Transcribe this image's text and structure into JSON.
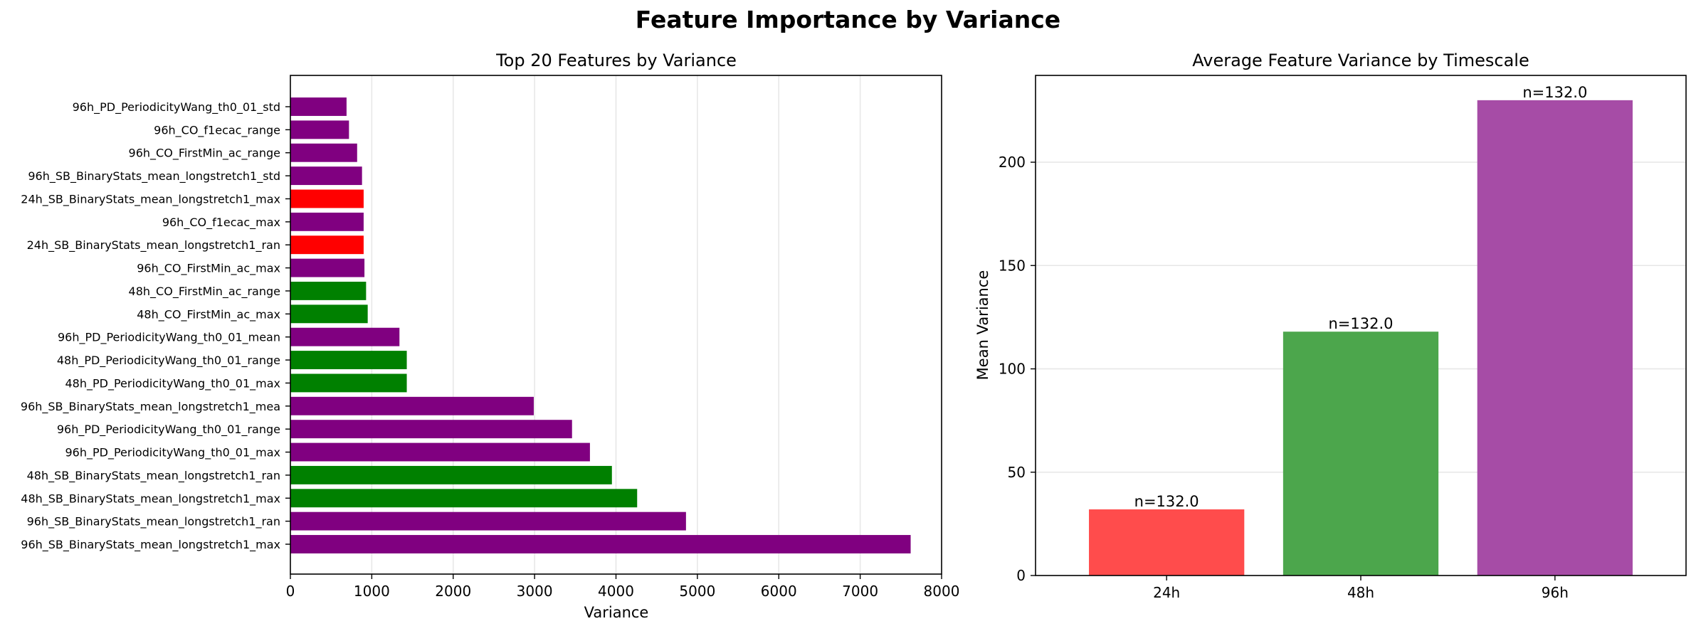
{
  "figure": {
    "suptitle": "Feature Importance by Variance"
  },
  "chart_data": [
    {
      "type": "bar",
      "orientation": "horizontal",
      "title": "Top 20 Features by Variance",
      "xlabel": "Variance",
      "ylabel": "",
      "xlim": [
        0,
        8000
      ],
      "xticks": [
        0,
        1000,
        2000,
        3000,
        4000,
        5000,
        6000,
        7000,
        8000
      ],
      "grid": "x",
      "colors": {
        "24h": "#ff0000",
        "48h": "#008000",
        "96h": "#800080"
      },
      "bars": [
        {
          "label": "96h_SB_BinaryStats_mean_longstretch1_max",
          "value": 7620,
          "group": "96h"
        },
        {
          "label": "96h_SB_BinaryStats_mean_longstretch1_ran",
          "value": 4860,
          "group": "96h"
        },
        {
          "label": "48h_SB_BinaryStats_mean_longstretch1_max",
          "value": 4260,
          "group": "48h"
        },
        {
          "label": "48h_SB_BinaryStats_mean_longstretch1_ran",
          "value": 3950,
          "group": "48h"
        },
        {
          "label": "96h_PD_PeriodicityWang_th0_01_max",
          "value": 3680,
          "group": "96h"
        },
        {
          "label": "96h_PD_PeriodicityWang_th0_01_range",
          "value": 3460,
          "group": "96h"
        },
        {
          "label": "96h_SB_BinaryStats_mean_longstretch1_mea",
          "value": 2990,
          "group": "96h"
        },
        {
          "label": "48h_PD_PeriodicityWang_th0_01_max",
          "value": 1430,
          "group": "48h"
        },
        {
          "label": "48h_PD_PeriodicityWang_th0_01_range",
          "value": 1430,
          "group": "48h"
        },
        {
          "label": "96h_PD_PeriodicityWang_th0_01_mean",
          "value": 1340,
          "group": "96h"
        },
        {
          "label": "48h_CO_FirstMin_ac_max",
          "value": 950,
          "group": "48h"
        },
        {
          "label": "48h_CO_FirstMin_ac_range",
          "value": 930,
          "group": "48h"
        },
        {
          "label": "96h_CO_FirstMin_ac_max",
          "value": 910,
          "group": "96h"
        },
        {
          "label": "24h_SB_BinaryStats_mean_longstretch1_ran",
          "value": 900,
          "group": "24h"
        },
        {
          "label": "96h_CO_f1ecac_max",
          "value": 900,
          "group": "96h"
        },
        {
          "label": "24h_SB_BinaryStats_mean_longstretch1_max",
          "value": 900,
          "group": "24h"
        },
        {
          "label": "96h_SB_BinaryStats_mean_longstretch1_std",
          "value": 880,
          "group": "96h"
        },
        {
          "label": "96h_CO_FirstMin_ac_range",
          "value": 820,
          "group": "96h"
        },
        {
          "label": "96h_CO_f1ecac_range",
          "value": 720,
          "group": "96h"
        },
        {
          "label": "96h_PD_PeriodicityWang_th0_01_std",
          "value": 690,
          "group": "96h"
        }
      ]
    },
    {
      "type": "bar",
      "title": "Average Feature Variance by Timescale",
      "xlabel": "",
      "ylabel": "Mean Variance",
      "ylim": [
        0,
        242
      ],
      "yticks": [
        0,
        50,
        100,
        150,
        200
      ],
      "grid": "y",
      "categories": [
        "24h",
        "48h",
        "96h"
      ],
      "values": [
        32,
        118,
        230
      ],
      "colors": [
        "#ff4c4c",
        "#4ca64c",
        "#a64ca6"
      ],
      "data_labels": [
        "n=132.0",
        "n=132.0",
        "n=132.0"
      ]
    }
  ]
}
